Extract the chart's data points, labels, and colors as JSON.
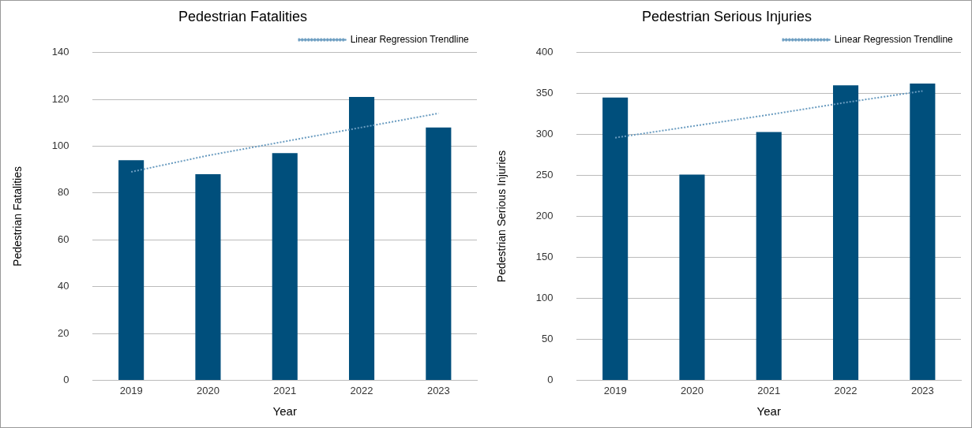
{
  "chart_data": [
    {
      "type": "bar",
      "title": "Pedestrian Fatalities",
      "xlabel": "Year",
      "ylabel": "Pedestrian Fatalities",
      "categories": [
        "2019",
        "2020",
        "2021",
        "2022",
        "2023"
      ],
      "series": [
        {
          "color": "#004f7c",
          "values": [
            94,
            88,
            97,
            121,
            108
          ]
        },
        {
          "type": "line",
          "name": "Linear Regression Trendline",
          "color": "#6a9cc0",
          "line_style": "dotted",
          "marker": "none",
          "values": [
            89,
            96,
            102,
            108,
            114
          ]
        }
      ],
      "ylim": [
        0,
        140
      ],
      "yticks": [
        0,
        20,
        40,
        60,
        80,
        100,
        120,
        140
      ],
      "grid": "y",
      "legend": "top right"
    },
    {
      "type": "bar",
      "title": "Pedestrian Serious Injuries",
      "xlabel": "Year",
      "ylabel": "Pedestrian Serious Injuries",
      "categories": [
        "2019",
        "2020",
        "2021",
        "2022",
        "2023"
      ],
      "series": [
        {
          "color": "#004f7c",
          "values": [
            345,
            251,
            303,
            360,
            362
          ]
        },
        {
          "type": "line",
          "name": "Linear Regression Trendline",
          "color": "#6a9cc0",
          "line_style": "dotted",
          "marker": "none",
          "values": [
            296,
            310,
            324,
            339,
            353
          ]
        }
      ],
      "ylim": [
        0,
        400
      ],
      "yticks": [
        0,
        50,
        100,
        150,
        200,
        250,
        300,
        350,
        400
      ],
      "grid": "y",
      "legend": "top right"
    }
  ]
}
